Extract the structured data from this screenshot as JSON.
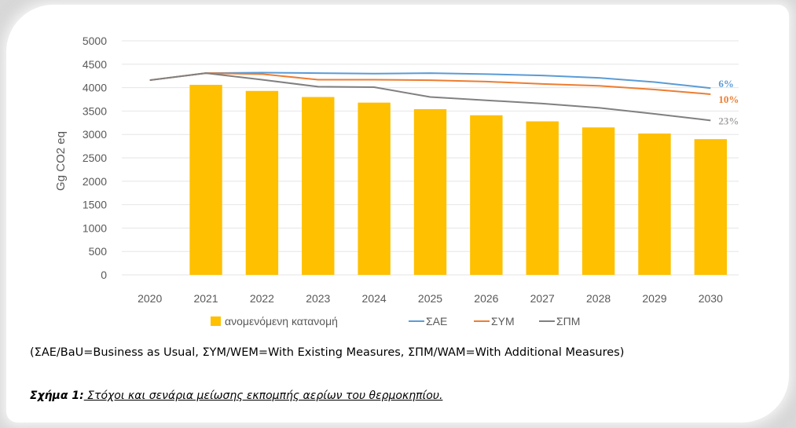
{
  "chart_data": {
    "type": "bar",
    "ylabel": "Gg CO2 eq",
    "ylim": [
      0,
      5000
    ],
    "yticks": [
      0,
      500,
      1000,
      1500,
      2000,
      2500,
      3000,
      3500,
      4000,
      4500,
      5000
    ],
    "grid": true,
    "legend_position": "bottom",
    "categories": [
      "2020",
      "2021",
      "2022",
      "2023",
      "2024",
      "2025",
      "2026",
      "2027",
      "2028",
      "2029",
      "2030"
    ],
    "bar_series": {
      "name": "ανομενόμενη κατανομή",
      "color": "#ffc000",
      "values": [
        null,
        4060,
        3930,
        3800,
        3680,
        3540,
        3410,
        3280,
        3150,
        3020,
        2900
      ]
    },
    "series": [
      {
        "name": "ΣΑΕ",
        "color": "#5b9bd5",
        "values": [
          4160,
          4310,
          4320,
          4310,
          4300,
          4310,
          4290,
          4260,
          4210,
          4120,
          3990
        ]
      },
      {
        "name": "ΣΥΜ",
        "color": "#ed7d31",
        "values": [
          4160,
          4310,
          4290,
          4170,
          4170,
          4160,
          4130,
          4080,
          4040,
          3960,
          3860
        ]
      },
      {
        "name": "ΣΠΜ",
        "color": "#808080",
        "values": [
          4160,
          4310,
          4170,
          4020,
          4010,
          3800,
          3730,
          3660,
          3570,
          3440,
          3300
        ]
      }
    ],
    "annotations": [
      {
        "text": "6%",
        "color": "#5b9bd5",
        "y": 3990
      },
      {
        "text": "10%",
        "color": "#ed7d31",
        "y": 3860
      },
      {
        "text": "23%",
        "color": "#a6a6a6",
        "y": 3300
      }
    ]
  },
  "note": "(ΣΑΕ/BaU=Business as Usual, ΣΥΜ/WEM=With Existing Measures, ΣΠΜ/WAM=With Additional Measures)",
  "caption": {
    "figure_label": "Σχήμα 1",
    "separator": ":",
    "text": " Στόχοι και σενάρια μείωσης εκπομπής αερίων του θερμοκηπίου."
  }
}
